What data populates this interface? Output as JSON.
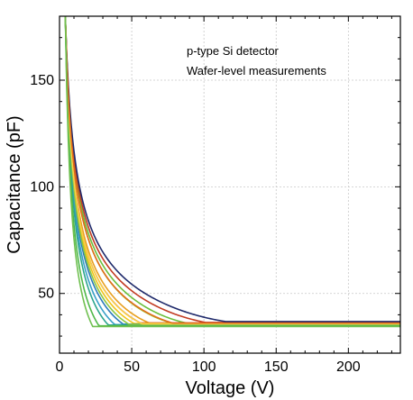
{
  "chart_data": {
    "type": "line",
    "title": "",
    "xlabel": "Voltage (V)",
    "ylabel": "Capacitance (pF)",
    "xlim": [
      0,
      236
    ],
    "ylim": [
      22,
      180
    ],
    "x_ticks": [
      0,
      50,
      100,
      150,
      200
    ],
    "y_ticks": [
      50,
      100,
      150
    ],
    "grid": true,
    "annotations": [
      "p-type Si detector",
      "Wafer-level measurements"
    ],
    "series": [
      {
        "color": "#6abf3c",
        "c_start": 180,
        "v_dep": 105,
        "c_end": 35.5,
        "sharpness": 1.15
      },
      {
        "color": "#a0c830",
        "c_start": 180,
        "v_dep": 98,
        "c_end": 35.8,
        "sharpness": 1.2
      },
      {
        "color": "#e8a020",
        "c_start": 180,
        "v_dep": 92,
        "c_end": 36.0,
        "sharpness": 1.3
      },
      {
        "color": "#d9531e",
        "c_start": 180,
        "v_dep": 88,
        "c_end": 36.2,
        "sharpness": 1.35
      },
      {
        "color": "#c23b22",
        "c_start": 180,
        "v_dep": 130,
        "c_end": 36.4,
        "sharpness": 1.1
      },
      {
        "color": "#f0c419",
        "c_start": 180,
        "v_dep": 80,
        "c_end": 35.9,
        "sharpness": 1.4
      },
      {
        "color": "#1f2a6b",
        "c_start": 180,
        "v_dep": 145,
        "c_end": 36.8,
        "sharpness": 1.05
      },
      {
        "color": "#2b7bba",
        "c_start": 180,
        "v_dep": 70,
        "c_end": 35.6,
        "sharpness": 1.5
      },
      {
        "color": "#39a0c8",
        "c_start": 180,
        "v_dep": 66,
        "c_end": 35.4,
        "sharpness": 1.6
      },
      {
        "color": "#2ca58d",
        "c_start": 180,
        "v_dep": 62,
        "c_end": 35.2,
        "sharpness": 1.7
      },
      {
        "color": "#8cc63f",
        "c_start": 180,
        "v_dep": 74,
        "c_end": 35.5,
        "sharpness": 1.45
      },
      {
        "color": "#f7d04a",
        "c_start": 180,
        "v_dep": 84,
        "c_end": 35.7,
        "sharpness": 1.35
      },
      {
        "color": "#e06c1a",
        "c_start": 180,
        "v_dep": 112,
        "c_end": 36.1,
        "sharpness": 1.2
      },
      {
        "color": "#4fb848",
        "c_start": 180,
        "v_dep": 55,
        "c_end": 34.8,
        "sharpness": 1.9
      },
      {
        "color": "#70c050",
        "c_start": 180,
        "v_dep": 50,
        "c_end": 34.5,
        "sharpness": 2.1
      }
    ]
  }
}
